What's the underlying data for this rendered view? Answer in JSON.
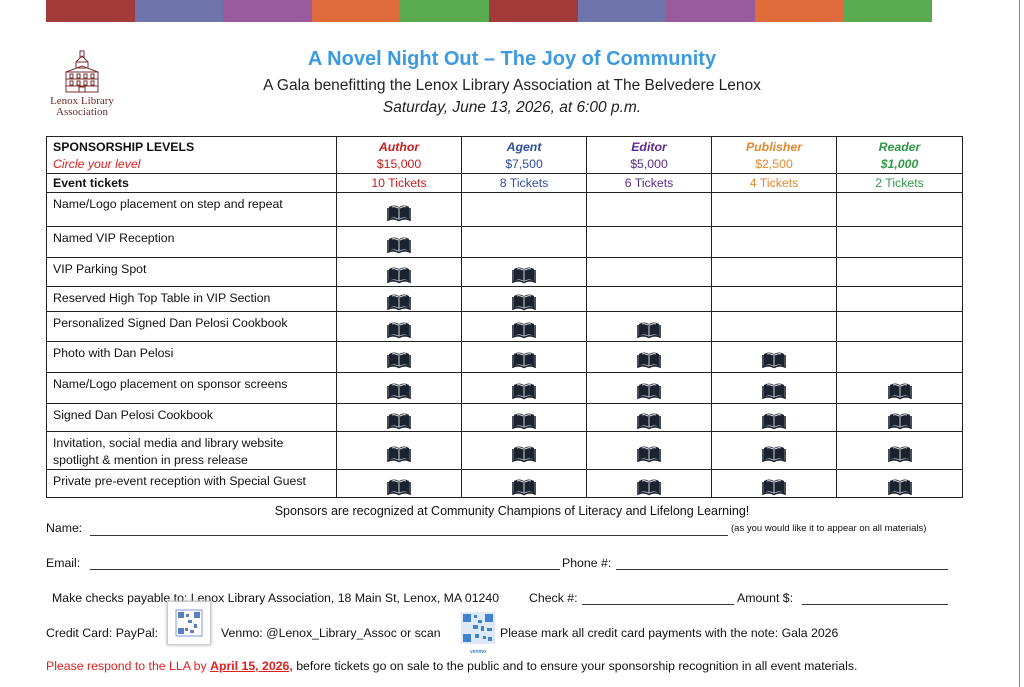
{
  "header": {
    "color_strip": [
      "#a33a3a",
      "#6f74ad",
      "#9a5b9c",
      "#df6a3c",
      "#5aaa4f",
      "#a33a3a",
      "#6f74ad",
      "#9a5b9c",
      "#df6a3c",
      "#5aaa4f"
    ],
    "logo_text_1": "Lenox Library",
    "logo_text_2": "Association",
    "title": "A Novel Night Out – The Joy of Community",
    "subtitle": "A Gala benefitting the Lenox Library Association at The Belvedere Lenox",
    "date": "Saturday, June 13, 2026, at 6:00 p.m."
  },
  "table": {
    "levels_heading": "SPONSORSHIP LEVELS",
    "circle_note": "Circle your level",
    "tickets_heading": "Event tickets",
    "tiers": [
      {
        "name": "Author",
        "price": "$15,000",
        "tickets": "10 Tickets",
        "color": "#c91c1c"
      },
      {
        "name": "Agent",
        "price": "$7,500",
        "tickets": "8 Tickets",
        "color": "#2e4e9e"
      },
      {
        "name": "Editor",
        "price": "$5,000",
        "tickets": "6 Tickets",
        "color": "#5a2c8e"
      },
      {
        "name": "Publisher",
        "price": "$2,500",
        "tickets": "4 Tickets",
        "color": "#e0892e"
      },
      {
        "name": "Reader",
        "price": "$1,000",
        "tickets": "2 Tickets",
        "color": "#2f9a48"
      }
    ],
    "benefits": [
      {
        "label": "Name/Logo placement on step and repeat",
        "tiers": 1
      },
      {
        "label": "Named VIP Reception",
        "tiers": 1
      },
      {
        "label": "VIP Parking Spot",
        "tiers": 2
      },
      {
        "label": "Reserved High Top Table in VIP Section",
        "tiers": 2
      },
      {
        "label": "Personalized Signed Dan Pelosi Cookbook",
        "tiers": 3
      },
      {
        "label": "Photo with Dan Pelosi",
        "tiers": 4
      },
      {
        "label": "Name/Logo placement on sponsor screens",
        "tiers": 5
      },
      {
        "label": "Signed Dan Pelosi Cookbook",
        "tiers": 5
      },
      {
        "label": "Invitation, social media and library website spotlight & mention in press release",
        "tiers": 5
      },
      {
        "label": "Private pre-event reception with Special Guest",
        "tiers": 5
      }
    ],
    "icon": "open-book-icon"
  },
  "form": {
    "recognition": "Sponsors are recognized at Community Champions of Literacy and Lifelong Learning!",
    "name_label": "Name:",
    "name_note": "(as you would like it to appear on all materials)",
    "email_label": "Email:",
    "phone_label": "Phone #:",
    "checks_text": "Make checks payable to: Lenox Library Association, 18 Main St, Lenox, MA 01240",
    "check_label": "Check #:",
    "amount_label": "Amount $:",
    "credit_label": "Credit Card:  PayPal:",
    "venmo_text": "Venmo: @Lenox_Library_Assoc or scan",
    "venmo_caption": "venmo",
    "card_note": "Please mark all credit card payments with the note: Gala 2026",
    "respond_pre": "Please respond to the LLA by ",
    "respond_date": "April 15, 2026,",
    "respond_post": " before tickets go on sale to the public and to ensure your sponsorship recognition in all event materials."
  }
}
